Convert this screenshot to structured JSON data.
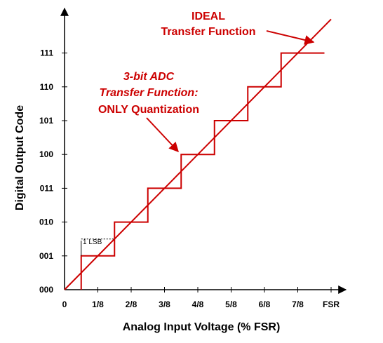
{
  "chart_data": {
    "type": "line",
    "xlabel": "Analog Input Voltage (% FSR)",
    "ylabel": "Digital Output Code",
    "x_ticks": [
      "0",
      "1/8",
      "2/8",
      "3/8",
      "4/8",
      "5/8",
      "6/8",
      "7/8",
      "FSR"
    ],
    "y_ticks": [
      "000",
      "001",
      "010",
      "011",
      "100",
      "101",
      "110",
      "111"
    ],
    "xlim": [
      0,
      8
    ],
    "ylim": [
      0,
      8
    ],
    "series": [
      {
        "name": "IDEAL Transfer Function",
        "points": [
          [
            0,
            0
          ],
          [
            8,
            8
          ]
        ],
        "color": "#cc0000"
      },
      {
        "name": "3-bit ADC Transfer Function: ONLY Quantization",
        "steps": [
          {
            "x_start": 0.5,
            "x_end": 1.5,
            "code": 1
          },
          {
            "x_start": 1.5,
            "x_end": 2.5,
            "code": 2
          },
          {
            "x_start": 2.5,
            "x_end": 3.5,
            "code": 3
          },
          {
            "x_start": 3.5,
            "x_end": 4.5,
            "code": 4
          },
          {
            "x_start": 4.5,
            "x_end": 5.5,
            "code": 5
          },
          {
            "x_start": 5.5,
            "x_end": 6.5,
            "code": 6
          },
          {
            "x_start": 6.5,
            "x_end": 7.8,
            "code": 7
          }
        ],
        "color": "#cc0000"
      }
    ],
    "annotations": {
      "ideal_line1": "IDEAL",
      "ideal_line2": "Transfer Function",
      "adc_line1": "3-bit ADC",
      "adc_line2": "Transfer Function:",
      "adc_line3": "ONLY Quantization",
      "lsb": "1 LSB"
    },
    "axis_color": "#000000",
    "trace_color": "#cc0000"
  }
}
